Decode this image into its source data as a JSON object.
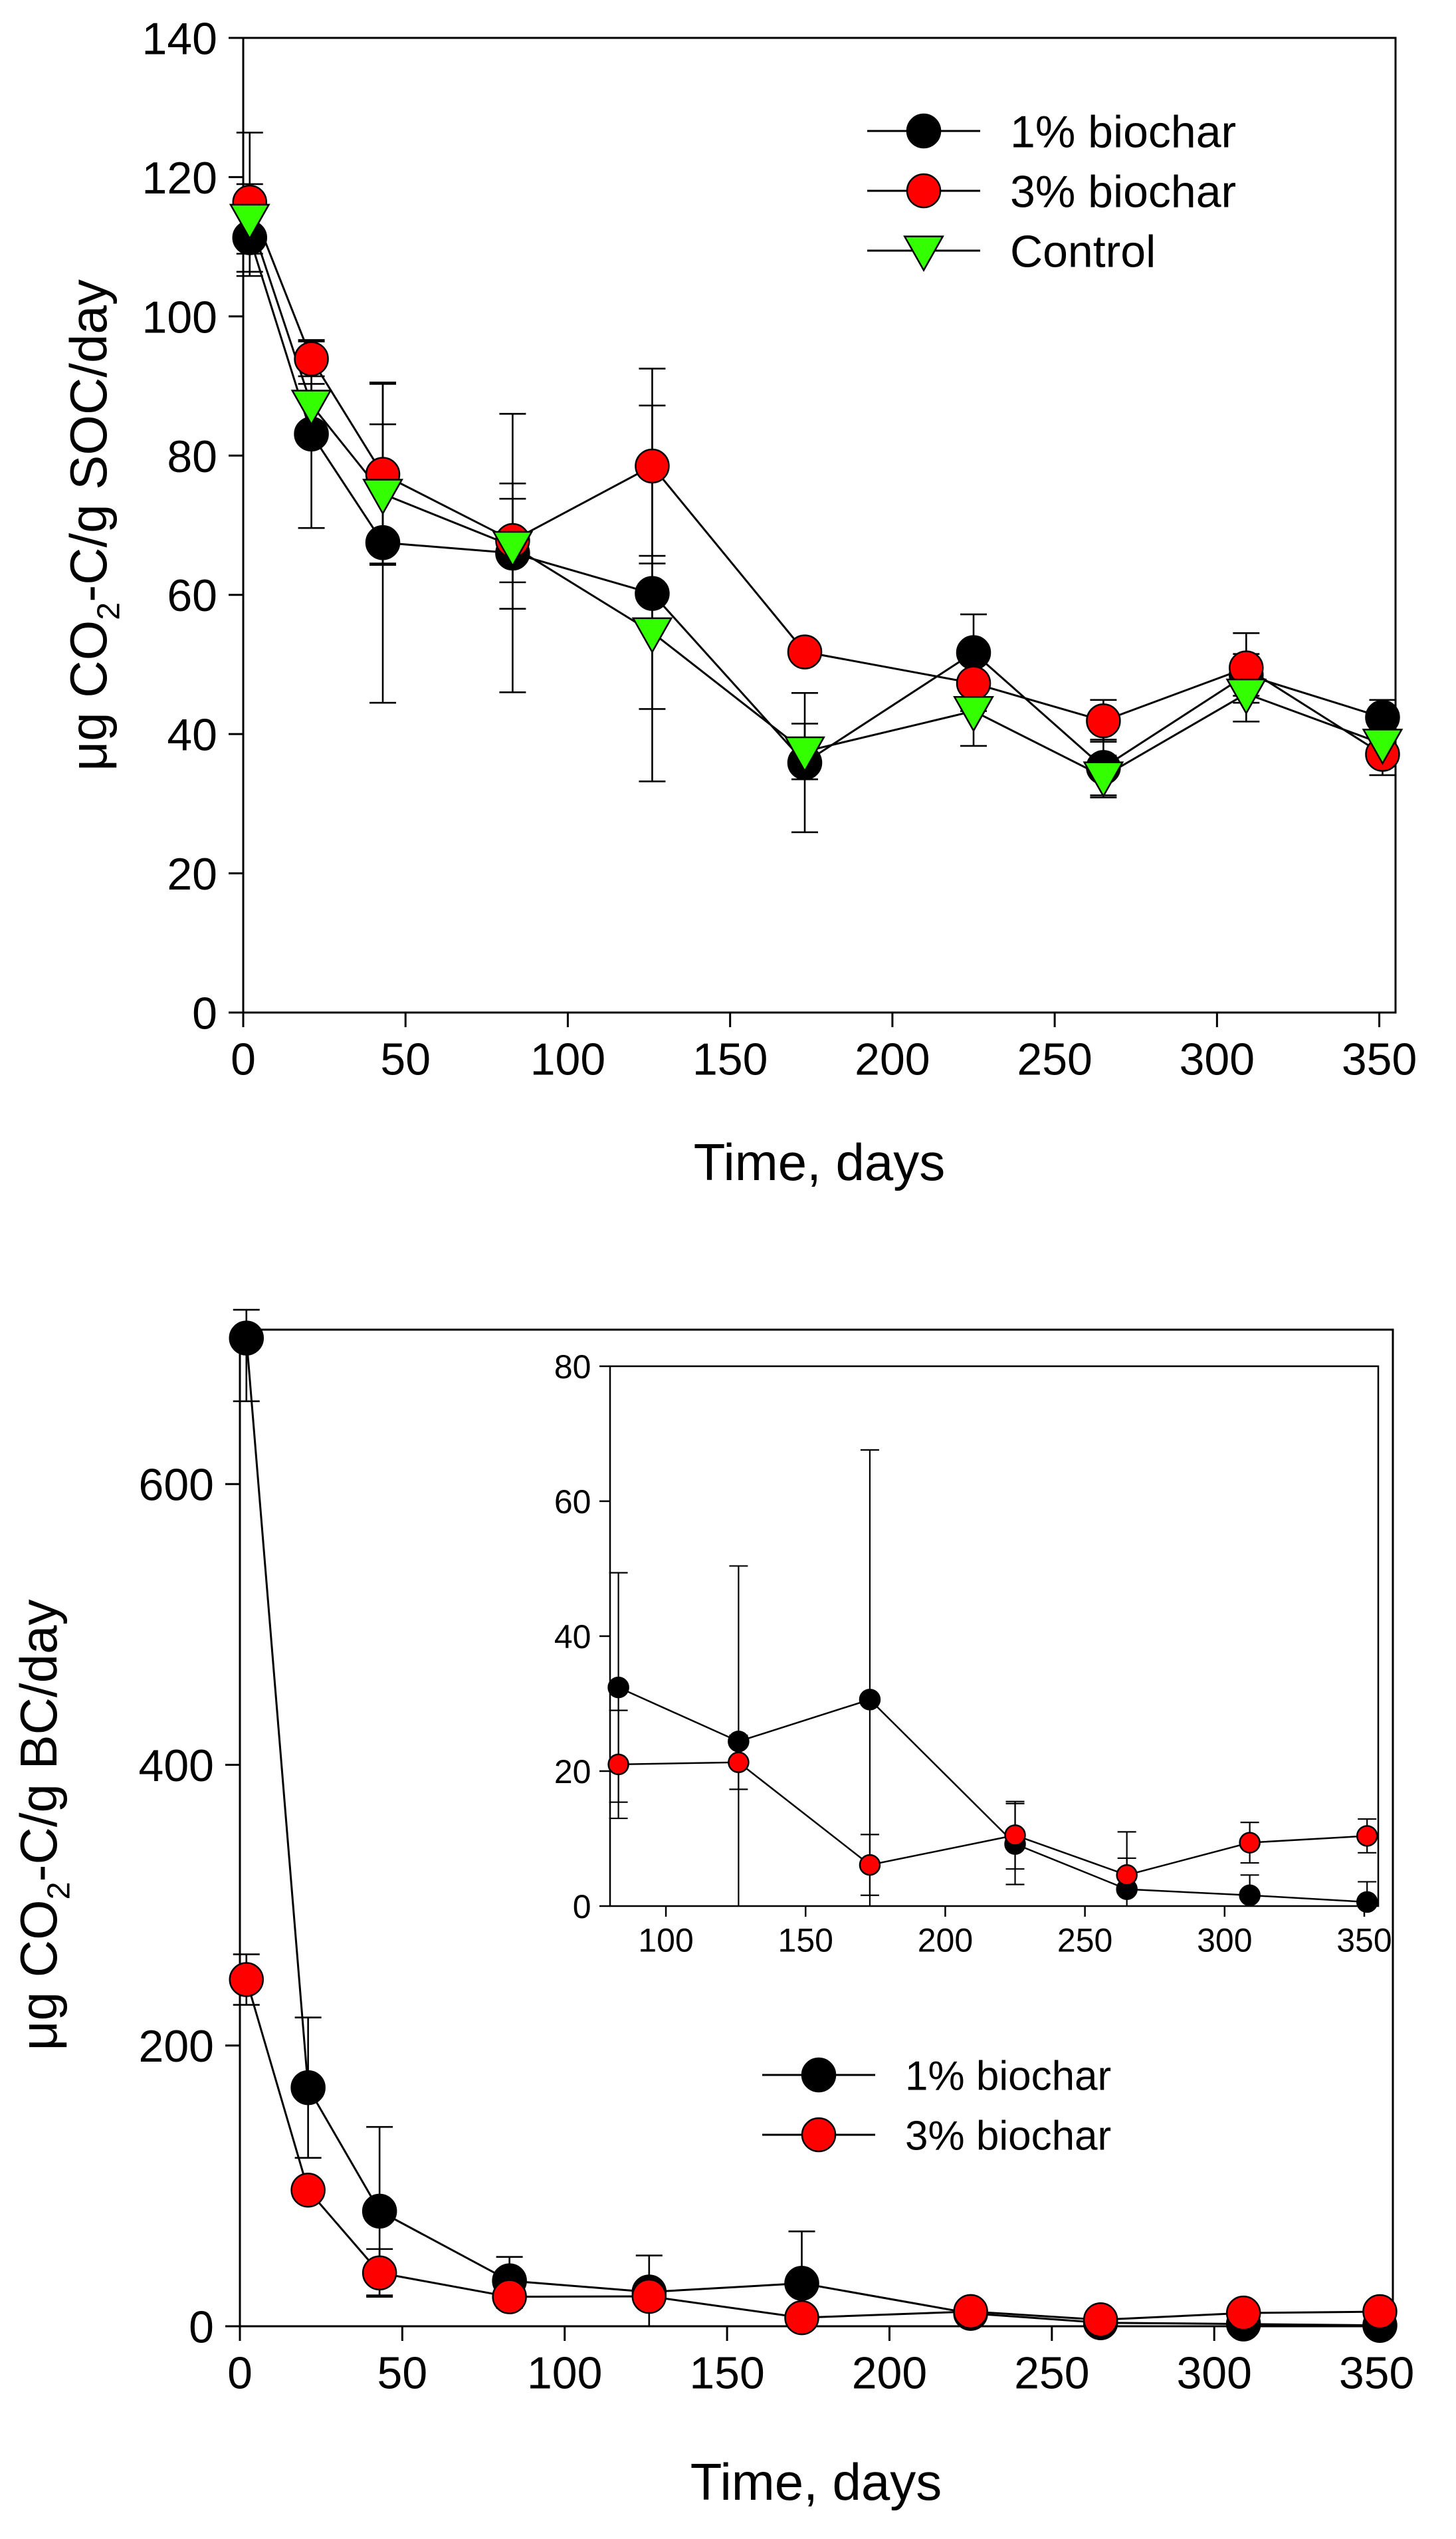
{
  "chart_data": [
    {
      "type": "line",
      "xlabel": "Time, days",
      "ylabel": {
        "prefix": "μg CO",
        "sub": "2",
        "suffix": "-C/g SOC/day"
      },
      "xlim": [
        0,
        355
      ],
      "ylim": [
        0,
        140
      ],
      "xticks": [
        0,
        50,
        100,
        150,
        200,
        250,
        300,
        350
      ],
      "yticks": [
        0,
        20,
        40,
        60,
        80,
        100,
        120,
        140
      ],
      "x": [
        2,
        21,
        43,
        83,
        126,
        173,
        225,
        265,
        309,
        351
      ],
      "series": [
        {
          "name": "1% biochar",
          "color": "#000000",
          "marker": "circle",
          "values": [
            111.3,
            83.1,
            67.5,
            66.0,
            60.2,
            35.9,
            51.7,
            35.2,
            48.5,
            42.4
          ],
          "errors": [
            5.5,
            13.5,
            23,
            20,
            27,
            10,
            5.5,
            4,
            3,
            2.5
          ]
        },
        {
          "name": "3% biochar",
          "color": "#ff0000",
          "marker": "circle",
          "values": [
            116.4,
            93.9,
            77.3,
            67.8,
            78.5,
            51.8,
            47.3,
            41.9,
            49.5,
            37.1
          ],
          "errors": [
            10,
            2.5,
            13,
            6,
            14,
            1.5,
            4,
            3,
            5,
            3
          ]
        },
        {
          "name": "Control",
          "color": "#33ff00",
          "marker": "triangle-down",
          "values": [
            114.0,
            87.3,
            74.5,
            67.0,
            54.6,
            37.5,
            43.3,
            33.9,
            45.8,
            38.6
          ],
          "errors": [
            5,
            3,
            10,
            9,
            11,
            4,
            5,
            3,
            4,
            3
          ]
        }
      ],
      "legend_position": "top-right"
    },
    {
      "type": "line",
      "xlabel": "Time, days",
      "ylabel": {
        "prefix": "μg CO",
        "sub": "2",
        "suffix": "-C/g BC/day"
      },
      "xlim": [
        0,
        355
      ],
      "ylim": [
        0,
        710
      ],
      "xticks": [
        0,
        50,
        100,
        150,
        200,
        250,
        300,
        350
      ],
      "yticks": [
        0,
        200,
        400,
        600
      ],
      "x": [
        2,
        21,
        43,
        83,
        126,
        173,
        225,
        265,
        309,
        351
      ],
      "series": [
        {
          "name": "1% biochar",
          "color": "#000000",
          "marker": "circle",
          "values": [
            704,
            170,
            82,
            32.4,
            24.4,
            30.6,
            9.2,
            2.5,
            1.6,
            0.6
          ],
          "errors": [
            45,
            50,
            60,
            17,
            26,
            37,
            6,
            8.5,
            3,
            3
          ]
        },
        {
          "name": "3% biochar",
          "color": "#ff0000",
          "marker": "circle",
          "values": [
            247,
            97,
            38,
            21.0,
            21.3,
            6.1,
            10.5,
            4.6,
            9.4,
            10.4
          ],
          "errors": [
            18,
            1,
            17,
            8,
            4,
            4.5,
            5,
            2.5,
            3,
            2.5
          ]
        }
      ],
      "legend_position": "center-right",
      "inset": {
        "xlim": [
          80,
          355
        ],
        "ylim": [
          0,
          80
        ],
        "xticks": [
          100,
          150,
          200,
          250,
          300,
          350
        ],
        "yticks": [
          0,
          20,
          40,
          60,
          80
        ],
        "start_index": 3
      }
    }
  ]
}
